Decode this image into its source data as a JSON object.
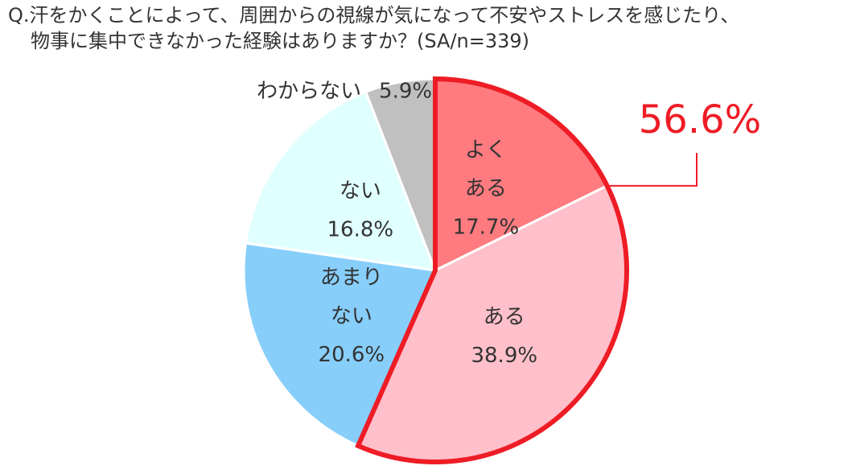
{
  "chart_data": {
    "type": "pie",
    "title": [
      "Q.汗をかくことによって、周囲からの視線が気になって不安やストレスを感じたり、",
      "物事に集中できなかった経験はありますか？(SA/n=339)"
    ],
    "categories": [
      [
        "よく",
        "ある"
      ],
      [
        "ある"
      ],
      [
        "あまり",
        "ない"
      ],
      [
        "ない"
      ],
      [
        "わからない"
      ]
    ],
    "values": [
      17.7,
      38.9,
      20.6,
      16.8,
      5.9
    ],
    "value_labels": [
      "17.7%",
      "38.9%",
      "20.6%",
      "16.8%",
      "5.9%"
    ],
    "colors": [
      "#ff7b80",
      "#ffc0cb",
      "#87cefa",
      "#e0ffff",
      "#c0c0c0"
    ],
    "highlight": {
      "value": 56.6,
      "label": "56.6%",
      "color": "#ee1c25"
    }
  }
}
